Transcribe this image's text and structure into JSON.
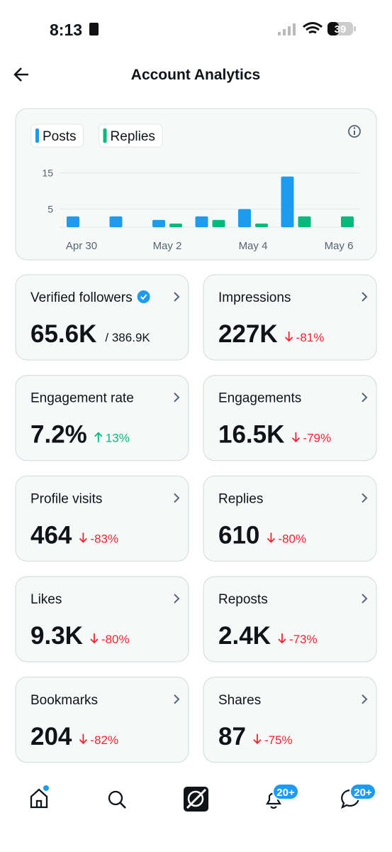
{
  "status_bar": {
    "time": "8:13",
    "battery": "39"
  },
  "header": {
    "title": "Account Analytics"
  },
  "chart": {
    "type": "bar",
    "categories": [
      "Apr 30",
      null,
      "May 2",
      null,
      "May 4",
      null,
      "May 6"
    ],
    "series": [
      {
        "name": "Posts",
        "color": "#1d9bf0",
        "values": [
          3,
          3,
          2,
          3,
          5,
          14,
          0
        ]
      },
      {
        "name": "Replies",
        "color": "#00ba7c",
        "values": [
          0,
          0,
          1,
          2,
          1,
          3,
          3
        ]
      }
    ],
    "ylim": [
      0,
      16
    ],
    "yticks": [
      5,
      15
    ],
    "grid": true
  },
  "cards": [
    {
      "label": "Verified followers",
      "value": "65.6K",
      "total": "/ 386.9K"
    },
    {
      "label": "Impressions",
      "value": "227K",
      "change": "-81%",
      "direction": "down"
    },
    {
      "label": "Engagement rate",
      "value": "7.2%",
      "change": "13%",
      "direction": "up"
    },
    {
      "label": "Engagements",
      "value": "16.5K",
      "change": "-79%",
      "direction": "down"
    },
    {
      "label": "Profile visits",
      "value": "464",
      "change": "-83%",
      "direction": "down"
    },
    {
      "label": "Replies",
      "value": "610",
      "change": "-80%",
      "direction": "down"
    },
    {
      "label": "Likes",
      "value": "9.3K",
      "change": "-80%",
      "direction": "down"
    },
    {
      "label": "Reposts",
      "value": "2.4K",
      "change": "-73%",
      "direction": "down"
    },
    {
      "label": "Bookmarks",
      "value": "204",
      "change": "-82%",
      "direction": "down"
    },
    {
      "label": "Shares",
      "value": "87",
      "change": "-75%",
      "direction": "down"
    }
  ],
  "tab_bar": {
    "notifications_badge": "20+",
    "messages_badge": "20+"
  }
}
